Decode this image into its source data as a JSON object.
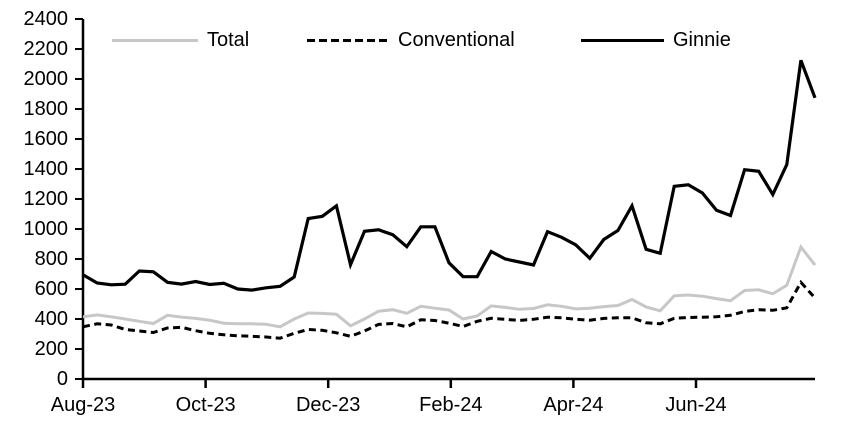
{
  "chart_data": {
    "type": "line",
    "title": "",
    "xlabel": "",
    "ylabel": "",
    "x_frequency": "weekly",
    "x_start": "Aug-23",
    "x_end": "Aug-24",
    "x_tick_labels": [
      "Aug-23",
      "Oct-23",
      "Dec-23",
      "Feb-24",
      "Apr-24",
      "Jun-24"
    ],
    "x_tick_month_offsets": [
      0,
      2,
      4,
      6,
      8,
      10
    ],
    "y_ticks": [
      0,
      200,
      400,
      600,
      800,
      1000,
      1200,
      1400,
      1600,
      1800,
      2000,
      2200,
      2400
    ],
    "ylim": [
      0,
      2400
    ],
    "grid": "off",
    "legend_position": "top",
    "axis_color": "#000000",
    "series": [
      {
        "name": "Total",
        "color": "#c7c7c7",
        "style": "solid",
        "values": [
          415,
          427,
          415,
          400,
          385,
          370,
          425,
          413,
          404,
          392,
          372,
          368,
          368,
          365,
          348,
          400,
          440,
          437,
          432,
          355,
          400,
          452,
          462,
          438,
          485,
          472,
          460,
          400,
          420,
          487,
          477,
          465,
          470,
          495,
          485,
          467,
          472,
          483,
          490,
          530,
          480,
          455,
          555,
          560,
          552,
          536,
          522,
          590,
          595,
          568,
          625,
          880,
          760
        ]
      },
      {
        "name": "Conventional",
        "color": "#000000",
        "style": "dashed",
        "values": [
          348,
          368,
          360,
          330,
          320,
          310,
          340,
          345,
          322,
          305,
          295,
          288,
          285,
          280,
          272,
          305,
          330,
          325,
          308,
          285,
          320,
          364,
          370,
          348,
          395,
          390,
          372,
          350,
          385,
          405,
          398,
          391,
          398,
          412,
          408,
          398,
          392,
          404,
          408,
          408,
          375,
          368,
          405,
          410,
          412,
          415,
          425,
          450,
          462,
          458,
          475,
          645,
          540
        ]
      },
      {
        "name": "Ginnie",
        "color": "#000000",
        "style": "solid",
        "values": [
          695,
          640,
          628,
          632,
          720,
          715,
          645,
          633,
          650,
          630,
          638,
          600,
          593,
          608,
          618,
          680,
          1070,
          1085,
          1155,
          762,
          985,
          995,
          962,
          882,
          1015,
          1015,
          775,
          682,
          682,
          850,
          800,
          780,
          760,
          982,
          945,
          895,
          805,
          930,
          990,
          1155,
          865,
          838,
          1285,
          1295,
          1240,
          1125,
          1090,
          1395,
          1385,
          1230,
          1430,
          2125,
          1875
        ]
      }
    ]
  }
}
